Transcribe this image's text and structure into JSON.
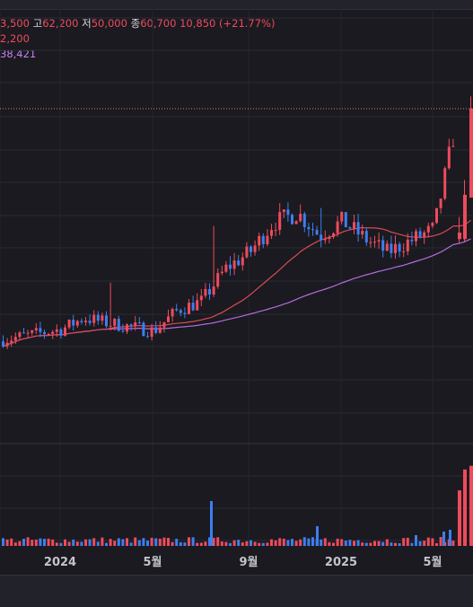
{
  "legend": {
    "open_partial": "3,500",
    "high_label": "고",
    "high": "62,200",
    "low_label": "저",
    "low": "50,000",
    "close_label": "종",
    "close": "60,700",
    "change": "10,850",
    "change_pct": "(+21.77%)",
    "ma1_partial": "2,200",
    "ma2_partial": "38,421"
  },
  "colors": {
    "up": "#ee4b5c",
    "down": "#3d7ef0",
    "ma1": "#d94a55",
    "ma2": "#b46be0",
    "grid": "#2a2b33",
    "price_line": "#d58a5a"
  },
  "chart_data": {
    "type": "candlestick",
    "x_axis_labels": [
      "2024",
      "5월",
      "9월",
      "2025",
      "5월"
    ],
    "current_close": 60700,
    "current_high": 62200,
    "current_low": 50000,
    "change": 10850,
    "change_pct": 21.77,
    "series": [
      {
        "name": "price",
        "anchors": [
          {
            "period": "2023-11",
            "close": 32500
          },
          {
            "period": "2024-01",
            "close": 33800
          },
          {
            "period": "2024-02",
            "close": 35200
          },
          {
            "period": "2024-03",
            "close": 34600
          },
          {
            "period": "2024-05",
            "close": 33600
          },
          {
            "period": "2024-06",
            "close": 36200
          },
          {
            "period": "2024-07",
            "close": 37200
          },
          {
            "period": "2024-08",
            "close": 41200
          },
          {
            "period": "2024-09",
            "close": 43200
          },
          {
            "period": "2024-10",
            "close": 46800
          },
          {
            "period": "2024-11",
            "close": 48000
          },
          {
            "period": "2024-12",
            "close": 45200
          },
          {
            "period": "2025-01",
            "close": 47000
          },
          {
            "period": "2025-02",
            "close": 44800
          },
          {
            "period": "2025-03",
            "close": 43200
          },
          {
            "period": "2025-04",
            "close": 44600
          },
          {
            "period": "2025-05",
            "close": 46000
          },
          {
            "period": "2025-06",
            "close": 60700
          }
        ]
      }
    ]
  }
}
